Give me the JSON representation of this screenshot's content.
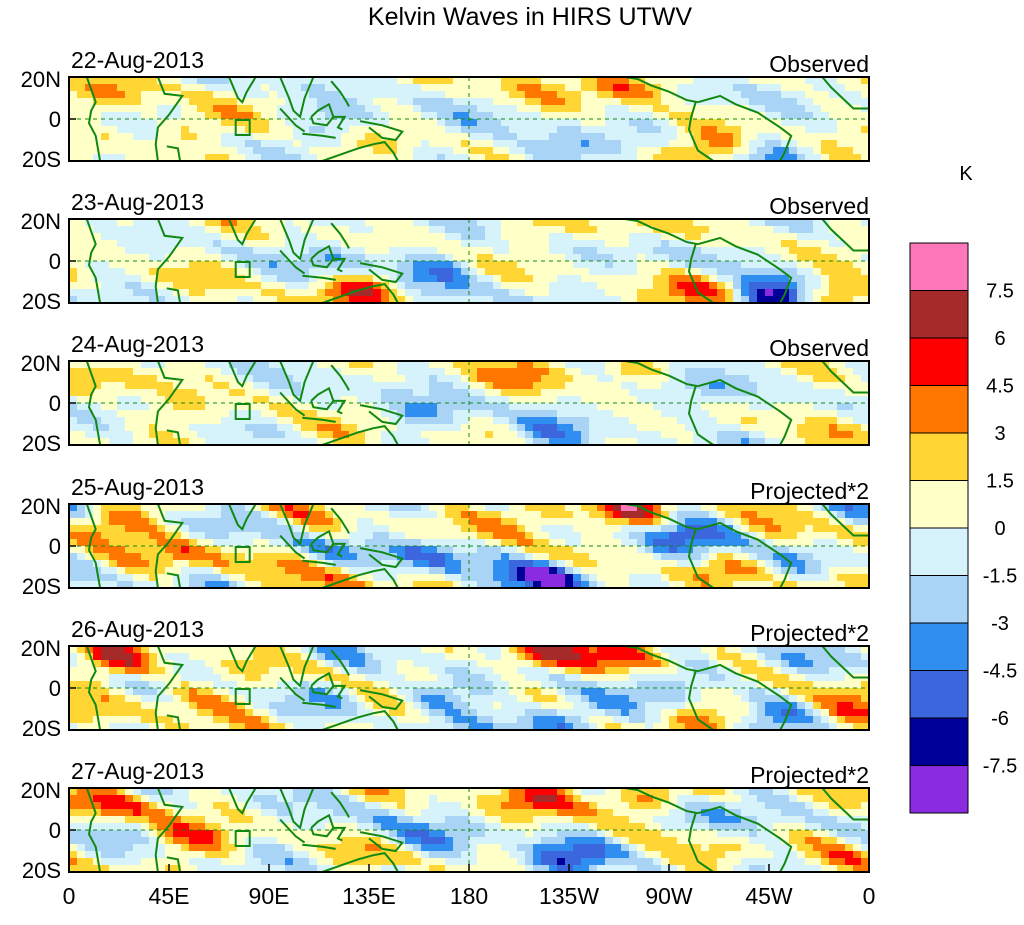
{
  "chart_data": {
    "type": "heatmap",
    "title": "Kelvin Waves in HIRS UTWV",
    "colorbar": {
      "unit": "K",
      "levels": [
        "7.5",
        "6",
        "4.5",
        "3",
        "1.5",
        "0",
        "-1.5",
        "-3",
        "-4.5",
        "-6",
        "-7.5"
      ],
      "colors": [
        "#ff77bb",
        "#a52a2a",
        "#ff0000",
        "#ff7700",
        "#ffd633",
        "#ffffc8",
        "#d6f2fb",
        "#a9d4f5",
        "#2f8ef0",
        "#3c66dd",
        "#000099",
        "#8a2be2"
      ]
    },
    "x_ticks": [
      "0",
      "45E",
      "90E",
      "135E",
      "180",
      "135W",
      "90W",
      "45W",
      "0"
    ],
    "y_ticks": [
      "20N",
      "0",
      "20S"
    ],
    "lon_range": [
      0,
      360
    ],
    "lat_range": [
      -20,
      20
    ],
    "panels": [
      {
        "date": "22-Aug-2013",
        "label": "Observed",
        "scale": 1,
        "seed": 3
      },
      {
        "date": "23-Aug-2013",
        "label": "Observed",
        "scale": 1,
        "seed": 7
      },
      {
        "date": "24-Aug-2013",
        "label": "Observed",
        "scale": 0.9,
        "seed": 11
      },
      {
        "date": "25-Aug-2013",
        "label": "Projected*2",
        "scale": 1.6,
        "seed": 17
      },
      {
        "date": "26-Aug-2013",
        "label": "Projected*2",
        "scale": 1.5,
        "seed": 23
      },
      {
        "date": "27-Aug-2013",
        "label": "Projected*2",
        "scale": 1.3,
        "seed": 29
      }
    ],
    "anomalies": [
      {
        "lon": 120,
        "lat": 0,
        "value": -3.5
      },
      {
        "lon": 127,
        "lat": -14,
        "value": 5.5
      },
      {
        "lon": 160,
        "lat": -5,
        "value": -4.5
      },
      {
        "lon": 205,
        "lat": 15,
        "value": 3.5
      },
      {
        "lon": 215,
        "lat": -15,
        "value": -4
      },
      {
        "lon": 250,
        "lat": 16,
        "value": 4.5
      },
      {
        "lon": 285,
        "lat": -15,
        "value": 6
      },
      {
        "lon": 313,
        "lat": -17,
        "value": -8
      },
      {
        "lon": 345,
        "lat": -15,
        "value": 4.5
      },
      {
        "lon": 275,
        "lat": 5,
        "value": -3
      },
      {
        "lon": 15,
        "lat": 12,
        "value": 3
      },
      {
        "lon": 50,
        "lat": -5,
        "value": 3
      }
    ]
  }
}
